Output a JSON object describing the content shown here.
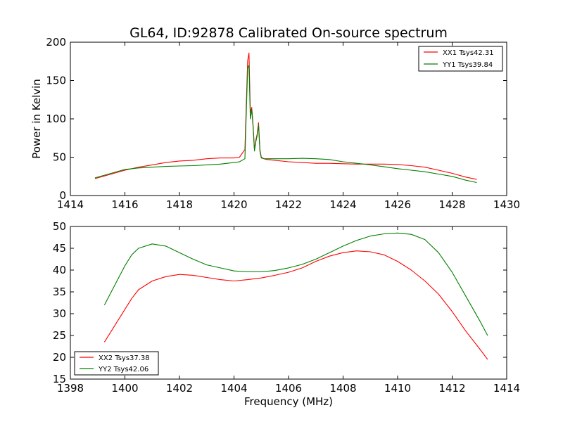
{
  "chart_data": [
    {
      "type": "line",
      "title": "GL64, ID:92878 Calibrated On-source spectrum",
      "xlabel": "",
      "ylabel": "Power in Kelvin",
      "xlim": [
        1414,
        1430
      ],
      "ylim": [
        0,
        200
      ],
      "xticks": [
        1414,
        1416,
        1418,
        1420,
        1422,
        1424,
        1426,
        1428,
        1430
      ],
      "yticks": [
        0,
        50,
        100,
        150,
        200
      ],
      "legend": "top-right",
      "grid": false,
      "series": [
        {
          "name": "XX1 Tsys42.31",
          "color": "#ff0000",
          "x": [
            1414.9,
            1415.5,
            1416.0,
            1416.5,
            1417.0,
            1417.5,
            1418.0,
            1418.5,
            1419.0,
            1419.5,
            1420.0,
            1420.2,
            1420.4,
            1420.5,
            1420.55,
            1420.6,
            1420.65,
            1420.7,
            1420.75,
            1420.8,
            1420.85,
            1420.9,
            1420.95,
            1421.0,
            1421.1,
            1421.2,
            1421.5,
            1422.0,
            1422.5,
            1423.0,
            1423.5,
            1424.0,
            1424.5,
            1425.0,
            1425.5,
            1426.0,
            1426.5,
            1427.0,
            1427.5,
            1428.0,
            1428.5,
            1428.9
          ],
          "values": [
            22,
            28,
            33,
            37,
            40,
            43,
            45,
            46,
            48,
            49,
            49,
            50,
            60,
            176,
            186,
            108,
            115,
            92,
            60,
            72,
            80,
            95,
            60,
            50,
            48,
            47,
            46,
            44,
            43,
            42,
            42,
            41.5,
            41,
            41,
            41,
            40.5,
            39,
            37,
            33,
            29,
            24,
            21
          ]
        },
        {
          "name": "YY1 Tsys39.84",
          "color": "#008000",
          "x": [
            1414.9,
            1415.5,
            1416.0,
            1416.5,
            1417.0,
            1417.5,
            1418.0,
            1418.5,
            1419.0,
            1419.5,
            1420.0,
            1420.2,
            1420.4,
            1420.5,
            1420.55,
            1420.6,
            1420.65,
            1420.7,
            1420.75,
            1420.8,
            1420.85,
            1420.9,
            1420.95,
            1421.0,
            1421.1,
            1421.2,
            1421.5,
            1422.0,
            1422.5,
            1423.0,
            1423.5,
            1424.0,
            1424.5,
            1425.0,
            1425.5,
            1426.0,
            1426.5,
            1427.0,
            1427.5,
            1428.0,
            1428.5,
            1428.9
          ],
          "values": [
            23,
            29,
            34,
            36,
            37,
            38,
            38.5,
            39,
            40,
            41,
            43,
            44,
            48,
            166,
            170,
            100,
            112,
            90,
            58,
            70,
            78,
            92,
            58,
            49,
            48,
            48,
            48,
            48,
            48.5,
            48,
            47,
            44,
            42,
            40,
            37.5,
            35,
            33,
            31,
            28,
            25,
            20,
            17
          ]
        }
      ]
    },
    {
      "type": "line",
      "title": "",
      "xlabel": "Frequency (MHz)",
      "ylabel": "",
      "xlim": [
        1398,
        1414
      ],
      "ylim": [
        15,
        50
      ],
      "xticks": [
        1398,
        1400,
        1402,
        1404,
        1406,
        1408,
        1410,
        1412,
        1414
      ],
      "yticks": [
        15,
        20,
        25,
        30,
        35,
        40,
        45,
        50
      ],
      "legend": "bottom-left",
      "grid": false,
      "series": [
        {
          "name": "XX2 Tsys37.38",
          "color": "#ff0000",
          "x": [
            1399.25,
            1399.5,
            1399.75,
            1400.0,
            1400.25,
            1400.5,
            1401.0,
            1401.5,
            1402.0,
            1402.5,
            1403.0,
            1403.5,
            1404.0,
            1404.5,
            1405.0,
            1405.5,
            1406.0,
            1406.5,
            1407.0,
            1407.5,
            1408.0,
            1408.5,
            1409.0,
            1409.5,
            1410.0,
            1410.5,
            1411.0,
            1411.5,
            1412.0,
            1412.5,
            1413.0,
            1413.3
          ],
          "values": [
            23.5,
            26,
            28.5,
            31,
            33.5,
            35.5,
            37.5,
            38.5,
            39,
            38.8,
            38.3,
            37.8,
            37.5,
            37.8,
            38.2,
            38.8,
            39.5,
            40.5,
            42,
            43.2,
            44,
            44.4,
            44.2,
            43.5,
            42,
            40,
            37.5,
            34.5,
            30.5,
            26,
            22,
            19.5
          ]
        },
        {
          "name": "YY2 Tsys42.06",
          "color": "#008000",
          "x": [
            1399.25,
            1399.5,
            1399.75,
            1400.0,
            1400.25,
            1400.5,
            1401.0,
            1401.5,
            1402.0,
            1402.5,
            1403.0,
            1403.5,
            1404.0,
            1404.5,
            1405.0,
            1405.5,
            1406.0,
            1406.5,
            1407.0,
            1407.5,
            1408.0,
            1408.5,
            1409.0,
            1409.5,
            1410.0,
            1410.5,
            1411.0,
            1411.5,
            1412.0,
            1412.5,
            1413.0,
            1413.3
          ],
          "values": [
            32,
            35,
            38,
            41,
            43.5,
            45,
            46,
            45.5,
            44,
            42.5,
            41.2,
            40.5,
            39.8,
            39.6,
            39.6,
            39.9,
            40.5,
            41.3,
            42.5,
            44,
            45.5,
            46.8,
            47.8,
            48.3,
            48.5,
            48.2,
            47,
            44,
            39.5,
            34,
            28.5,
            25
          ]
        }
      ]
    }
  ]
}
